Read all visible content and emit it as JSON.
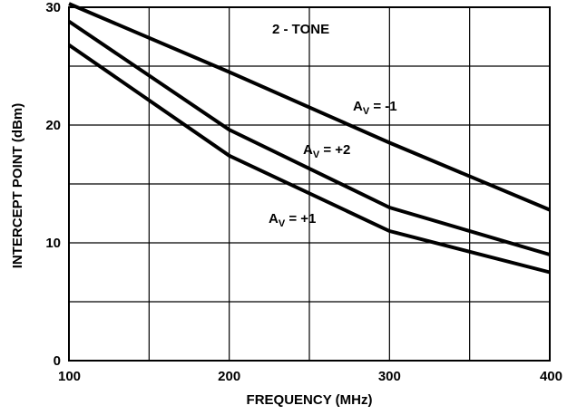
{
  "chart_data": {
    "type": "line",
    "xlabel": "FREQUENCY (MHz)",
    "ylabel": "INTERCEPT POINT (dBm)",
    "xlim": [
      100,
      400
    ],
    "ylim": [
      0,
      30
    ],
    "x_ticks": [
      "100",
      "200",
      "300",
      "400"
    ],
    "y_ticks": [
      "0",
      "10",
      "20",
      "30"
    ],
    "grid": true,
    "annotation_title": "2 - TONE",
    "series": [
      {
        "label_main": "A",
        "label_sub": "V",
        "label_rest": " = -1",
        "x": [
          100,
          200,
          300,
          400
        ],
        "y": [
          30.3,
          24.5,
          18.5,
          12.8
        ]
      },
      {
        "label_main": "A",
        "label_sub": "V",
        "label_rest": " = +2",
        "x": [
          100,
          200,
          300,
          400
        ],
        "y": [
          28.8,
          19.6,
          13.0,
          9.0
        ]
      },
      {
        "label_main": "A",
        "label_sub": "V",
        "label_rest": " = +1",
        "x": [
          100,
          200,
          300,
          400
        ],
        "y": [
          26.8,
          17.4,
          11.0,
          7.5
        ]
      }
    ],
    "line_color": "#000000"
  }
}
